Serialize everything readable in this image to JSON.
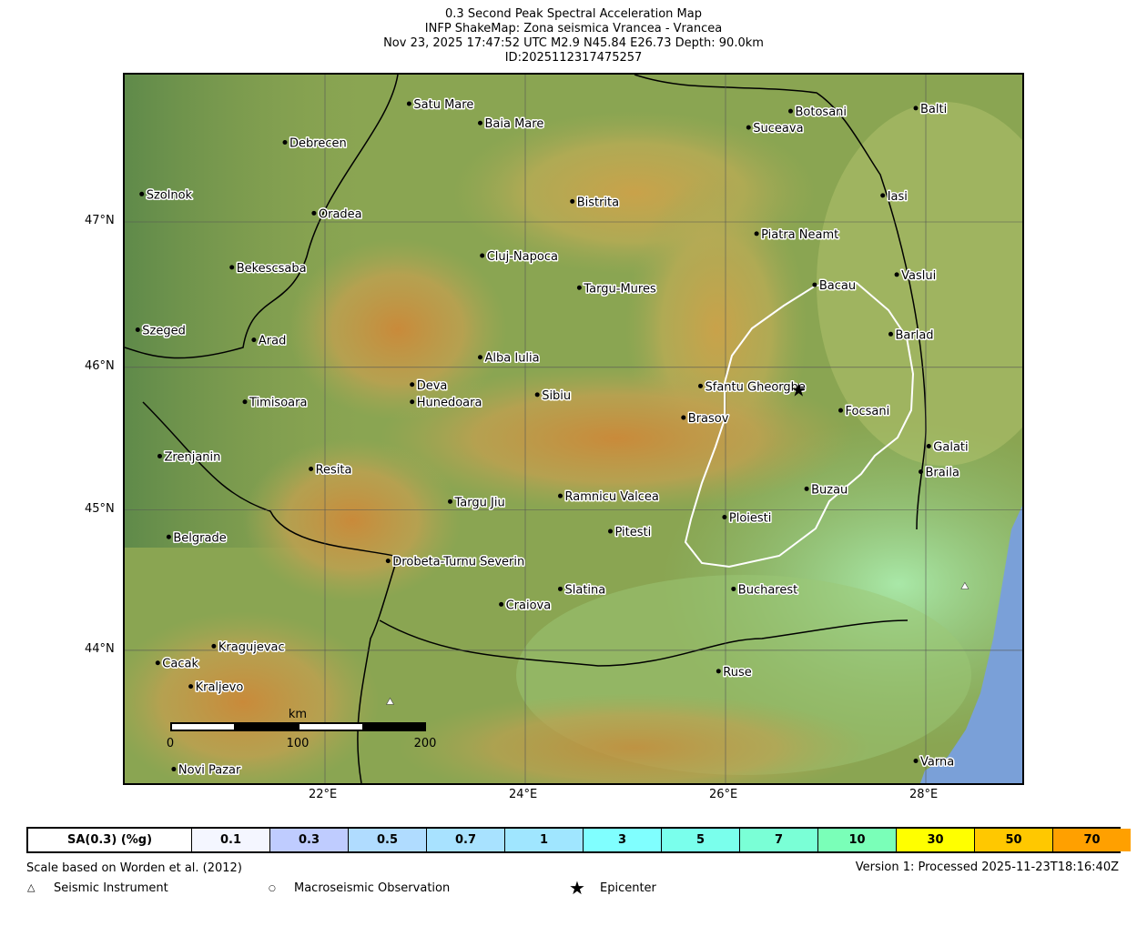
{
  "title": {
    "line1": "0.3 Second Peak Spectral Acceleration Map",
    "line2": "INFP ShakeMap: Zona seismica Vrancea - Vrancea",
    "line3": "Nov 23, 2025 17:47:52 UTC M2.9 N45.84 E26.73 Depth: 90.0km",
    "line4": "ID:2025112317475257"
  },
  "map": {
    "lon_range": [
      20.0,
      29.0
    ],
    "lat_range": [
      43.05,
      48.03
    ],
    "projection": "mercator",
    "lon_ticks": [
      "22°E",
      "24°E",
      "26°E",
      "28°E"
    ],
    "lon_tick_values": [
      22,
      24,
      26,
      28
    ],
    "lat_ticks": [
      "47°N",
      "46°N",
      "45°N",
      "44°N"
    ],
    "lat_tick_values": [
      47,
      46,
      45,
      44
    ],
    "epicenter": {
      "lon": 26.73,
      "lat": 45.84,
      "icon": "star-icon"
    },
    "instruments": [
      {
        "lon": 22.65,
        "lat": 43.63
      },
      {
        "lon": 28.39,
        "lat": 44.46
      }
    ],
    "cities": [
      {
        "name": "Satu Mare",
        "lon": 22.84,
        "lat": 47.8
      },
      {
        "name": "Baia Mare",
        "lon": 23.55,
        "lat": 47.67
      },
      {
        "name": "Debrecen",
        "lon": 21.6,
        "lat": 47.54
      },
      {
        "name": "Botosani",
        "lon": 26.65,
        "lat": 47.75
      },
      {
        "name": "Suceava",
        "lon": 26.23,
        "lat": 47.64
      },
      {
        "name": "Balti",
        "lon": 27.9,
        "lat": 47.77
      },
      {
        "name": "Szolnok",
        "lon": 20.17,
        "lat": 47.19
      },
      {
        "name": "Oradea",
        "lon": 21.89,
        "lat": 47.06
      },
      {
        "name": "Bistrita",
        "lon": 24.47,
        "lat": 47.14
      },
      {
        "name": "Iasi",
        "lon": 27.57,
        "lat": 47.18
      },
      {
        "name": "Piatra Neamt",
        "lon": 26.31,
        "lat": 46.92
      },
      {
        "name": "Cluj-Napoca",
        "lon": 23.57,
        "lat": 46.77
      },
      {
        "name": "Bekescsaba",
        "lon": 21.07,
        "lat": 46.69
      },
      {
        "name": "Vaslui",
        "lon": 27.71,
        "lat": 46.64
      },
      {
        "name": "Bacau",
        "lon": 26.89,
        "lat": 46.57
      },
      {
        "name": "Targu-Mures",
        "lon": 24.54,
        "lat": 46.55
      },
      {
        "name": "Szeged",
        "lon": 20.13,
        "lat": 46.26
      },
      {
        "name": "Barlad",
        "lon": 27.65,
        "lat": 46.23
      },
      {
        "name": "Arad",
        "lon": 21.29,
        "lat": 46.19
      },
      {
        "name": "Alba Iulia",
        "lon": 23.55,
        "lat": 46.07
      },
      {
        "name": "Deva",
        "lon": 22.87,
        "lat": 45.88
      },
      {
        "name": "Sfantu Gheorghe",
        "lon": 25.75,
        "lat": 45.87
      },
      {
        "name": "Hunedoara",
        "lon": 22.87,
        "lat": 45.76
      },
      {
        "name": "Sibiu",
        "lon": 24.12,
        "lat": 45.81
      },
      {
        "name": "Timisoara",
        "lon": 21.2,
        "lat": 45.76
      },
      {
        "name": "Focsani",
        "lon": 27.15,
        "lat": 45.7
      },
      {
        "name": "Brasov",
        "lon": 25.58,
        "lat": 45.65
      },
      {
        "name": "Galati",
        "lon": 28.03,
        "lat": 45.45
      },
      {
        "name": "Zrenjanin",
        "lon": 20.35,
        "lat": 45.38
      },
      {
        "name": "Braila",
        "lon": 27.95,
        "lat": 45.27
      },
      {
        "name": "Resita",
        "lon": 21.86,
        "lat": 45.29
      },
      {
        "name": "Buzau",
        "lon": 26.81,
        "lat": 45.15
      },
      {
        "name": "Ramnicu Valcea",
        "lon": 24.35,
        "lat": 45.1
      },
      {
        "name": "Targu Jiu",
        "lon": 23.25,
        "lat": 45.06
      },
      {
        "name": "Ploiesti",
        "lon": 25.99,
        "lat": 44.95
      },
      {
        "name": "Pitesti",
        "lon": 24.85,
        "lat": 44.85
      },
      {
        "name": "Belgrade",
        "lon": 20.44,
        "lat": 44.81
      },
      {
        "name": "Drobeta-Turnu Severin",
        "lon": 22.63,
        "lat": 44.64
      },
      {
        "name": "Slatina",
        "lon": 24.35,
        "lat": 44.44
      },
      {
        "name": "Bucharest",
        "lon": 26.08,
        "lat": 44.44
      },
      {
        "name": "Craiova",
        "lon": 23.76,
        "lat": 44.33
      },
      {
        "name": "Kragujevac",
        "lon": 20.89,
        "lat": 44.03
      },
      {
        "name": "Cacak",
        "lon": 20.33,
        "lat": 43.91
      },
      {
        "name": "Kraljevo",
        "lon": 20.66,
        "lat": 43.74
      },
      {
        "name": "Ruse",
        "lon": 25.93,
        "lat": 43.85
      },
      {
        "name": "Novi Pazar",
        "lon": 20.49,
        "lat": 43.14
      },
      {
        "name": "Varna",
        "lon": 27.9,
        "lat": 43.2
      }
    ],
    "scalebar": {
      "unit": "km",
      "labels": [
        "0",
        "100",
        "200"
      ]
    }
  },
  "legend": {
    "header": "SA(0.3) (%g)",
    "bins": [
      {
        "label": "0.1",
        "color": "#f4f6ff"
      },
      {
        "label": "0.3",
        "color": "#bfccff"
      },
      {
        "label": "0.5",
        "color": "#b0dcff"
      },
      {
        "label": "0.7",
        "color": "#a8e2ff"
      },
      {
        "label": "1",
        "color": "#a0e6ff"
      },
      {
        "label": "3",
        "color": "#80ffff"
      },
      {
        "label": "5",
        "color": "#7affec"
      },
      {
        "label": "7",
        "color": "#7affd6"
      },
      {
        "label": "10",
        "color": "#7affb8"
      },
      {
        "label": "30",
        "color": "#ffff00"
      },
      {
        "label": "50",
        "color": "#ffc800"
      },
      {
        "label": "70",
        "color": "#ffa000"
      }
    ]
  },
  "footer": {
    "scale_note": "Scale based on Worden et al. (2012)",
    "version": "Version 1: Processed 2025-11-23T18:16:40Z",
    "key_instrument": "Seismic Instrument",
    "key_macro": "Macroseismic Observation",
    "key_epicenter": "Epicenter",
    "sym_instrument": "△",
    "sym_macro": "○",
    "sym_epicenter": "★"
  }
}
